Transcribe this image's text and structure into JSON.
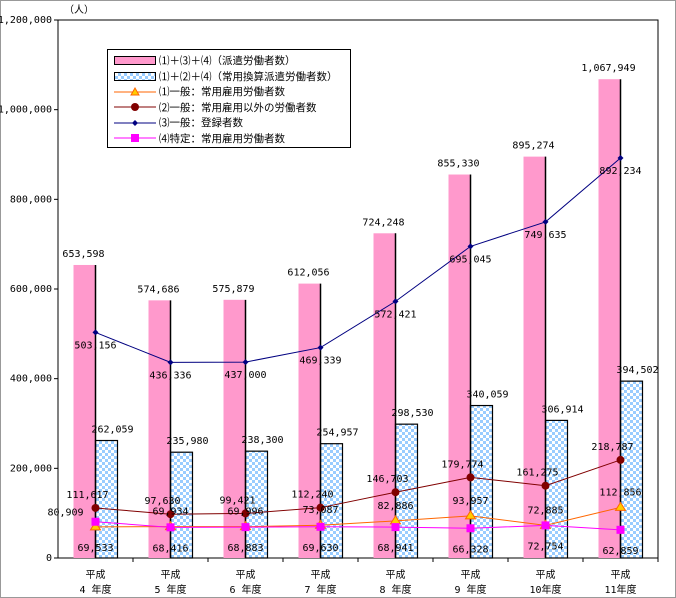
{
  "chart_data": {
    "type": "bar",
    "unit_label": "（人）",
    "categories": [
      [
        "平成",
        "4 年度"
      ],
      [
        "平成",
        "5 年度"
      ],
      [
        "平成",
        "6 年度"
      ],
      [
        "平成",
        "7 年度"
      ],
      [
        "平成",
        "8 年度"
      ],
      [
        "平成",
        "9 年度"
      ],
      [
        "平成",
        "10年度"
      ],
      [
        "平成",
        "11年度"
      ]
    ],
    "ylim": [
      0,
      1200000
    ],
    "yticks": [
      "0",
      "200,000",
      "400,000",
      "600,000",
      "800,000",
      "1,000,000",
      "1,200,000"
    ],
    "ytick_values": [
      0,
      200000,
      400000,
      600000,
      800000,
      1000000,
      1200000
    ],
    "grid": false,
    "legend_position": "top-left",
    "series": [
      {
        "name": "⑴＋⑶＋⑷（派遣労働者数）",
        "kind": "bar",
        "color": "#ff99cc",
        "values": [
          653598,
          574686,
          575879,
          612056,
          724248,
          855330,
          895274,
          1067949
        ],
        "labels": [
          "653,598",
          "574,686",
          "575,879",
          "612,056",
          "724,248",
          "855,330",
          "895,274",
          "1,067,949"
        ]
      },
      {
        "name": "⑴＋⑵＋⑷（常用換算派遣労働者数）",
        "kind": "bar",
        "color": "#99ccff",
        "pattern": "checker",
        "values": [
          262059,
          235980,
          238300,
          254957,
          298530,
          340059,
          306914,
          394502
        ],
        "labels": [
          "262,059",
          "235,980",
          "238,300",
          "254,957",
          "298,530",
          "340,059",
          "306,914",
          "394,502"
        ]
      },
      {
        "name": "⑴一般：常用雇用労働者数",
        "kind": "line",
        "color": "#ff6600",
        "marker": "triangle",
        "values": [
          69533,
          69934,
          69996,
          73087,
          82886,
          93957,
          72885,
          112856
        ],
        "labels": [
          "69,533",
          "69,934",
          "69,996",
          "73,087",
          "82,886",
          "93,957",
          "72,885",
          "112,856"
        ]
      },
      {
        "name": "⑵一般：常用雇用以外の労働者数",
        "kind": "line",
        "color": "#800000",
        "marker": "circle",
        "values": [
          111617,
          97630,
          99421,
          112240,
          146703,
          179774,
          161275,
          218787
        ],
        "labels": [
          "111,617",
          "97,630",
          "99,421",
          "112,240",
          "146,703",
          "179,774",
          "161,275",
          "218,787"
        ]
      },
      {
        "name": "⑶一般：登録者数",
        "kind": "line",
        "color": "#000080",
        "marker": "diamond",
        "values": [
          503156,
          436336,
          437000,
          469339,
          572421,
          695045,
          749635,
          892234
        ],
        "labels": [
          "503,156",
          "436,336",
          "437,000",
          "469,339",
          "572,421",
          "695,045",
          "749,635",
          "892,234"
        ]
      },
      {
        "name": "⑷特定：常用雇用労働者数",
        "kind": "line",
        "color": "#ff00ff",
        "marker": "square",
        "values": [
          80909,
          68416,
          68883,
          69630,
          68941,
          66328,
          72754,
          62859
        ],
        "labels": [
          "80,909",
          "68,416",
          "68,883",
          "69,630",
          "68,941",
          "66,328",
          "72,754",
          "62,859"
        ]
      }
    ]
  }
}
